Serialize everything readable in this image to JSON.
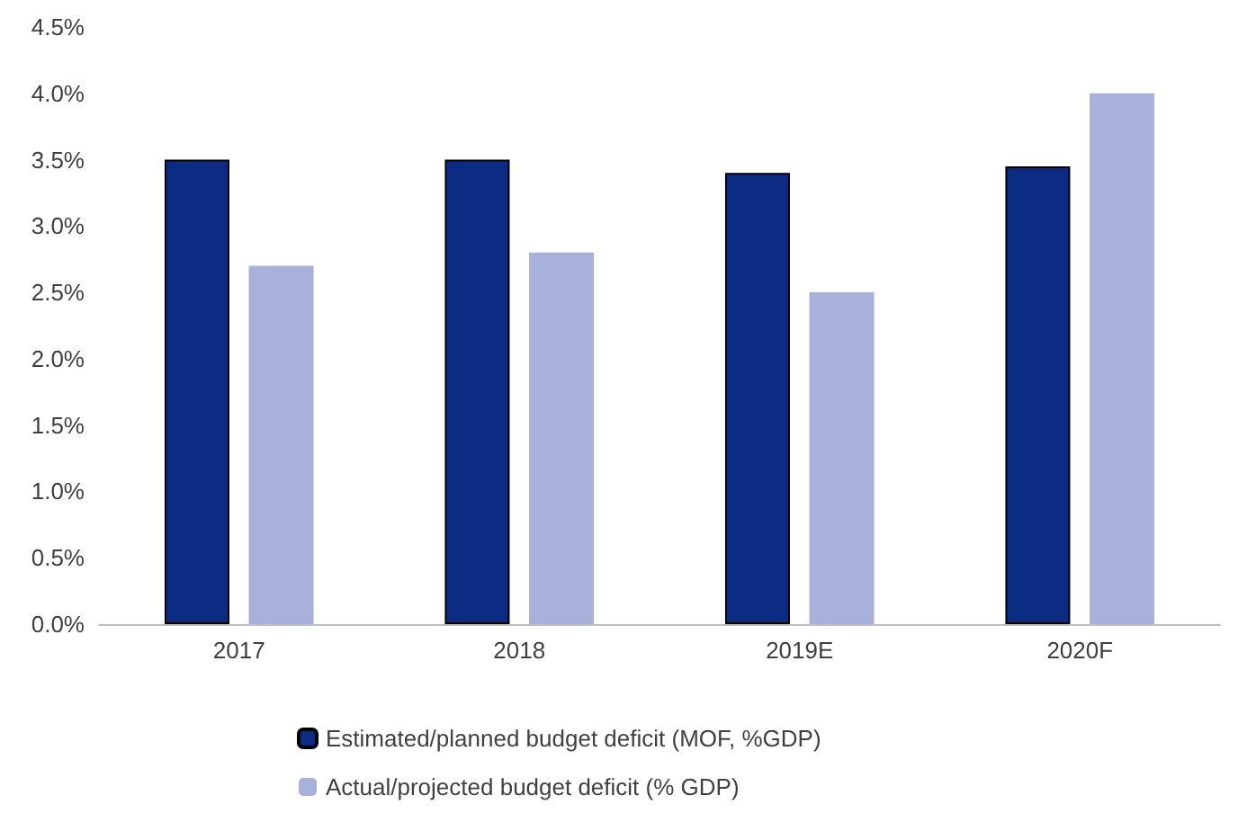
{
  "chart_data": {
    "type": "bar",
    "categories": [
      "2017",
      "2018",
      "2019E",
      "2020F"
    ],
    "series": [
      {
        "name": "Estimated/planned budget deficit (MOF, %GDP)",
        "color": "#0c2c84",
        "values": [
          3.5,
          3.5,
          3.4,
          3.45
        ]
      },
      {
        "name": "Actual/projected budget deficit (% GDP)",
        "color": "#a7b1da",
        "values": [
          2.7,
          2.8,
          2.5,
          4.0
        ]
      }
    ],
    "ylim": [
      0,
      4.5
    ],
    "yticks": [
      {
        "value": 0,
        "label": "0.0%"
      },
      {
        "value": 0.5,
        "label": "0.5%"
      },
      {
        "value": 1,
        "label": "1.0%"
      },
      {
        "value": 1.5,
        "label": "1.5%"
      },
      {
        "value": 2,
        "label": "2.0%"
      },
      {
        "value": 2.5,
        "label": "2.5%"
      },
      {
        "value": 3,
        "label": "3.0%"
      },
      {
        "value": 3.5,
        "label": "3.5%"
      },
      {
        "value": 4,
        "label": "4.0%"
      },
      {
        "value": 4.5,
        "label": "4.5%"
      }
    ],
    "grid": false,
    "legend": "bottom"
  }
}
